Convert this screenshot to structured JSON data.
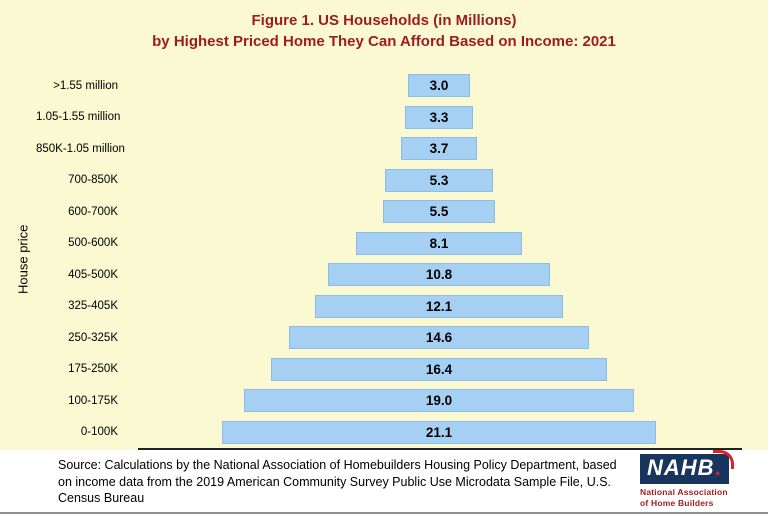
{
  "title": {
    "line1": "Figure 1. US Households (in Millions)",
    "line2": "by Highest Priced Home They Can Afford Based on Income: 2021"
  },
  "chart_data": {
    "type": "bar",
    "subtype": "centered-pyramid-horizontal",
    "title": "Figure 1. US Households (in Millions) by Highest Priced Home They Can Afford Based on Income: 2021",
    "xlabel": "",
    "ylabel": "House price",
    "categories": [
      ">1.55 million",
      "1.05-1.55 million",
      "850K-1.05 million",
      "700-850K",
      "600-700K",
      "500-600K",
      "405-500K",
      "325-405K",
      "250-325K",
      "175-250K",
      "100-175K",
      "0-100K"
    ],
    "values": [
      3.0,
      3.3,
      3.7,
      5.3,
      5.5,
      8.1,
      10.8,
      12.1,
      14.6,
      16.4,
      19.0,
      21.1
    ],
    "labels": [
      "3.0",
      "3.3",
      "3.7",
      "5.3",
      "5.5",
      "8.1",
      "10.8",
      "12.1",
      "14.6",
      "16.4",
      "19.0",
      "21.1"
    ],
    "max_value": 21.1,
    "bar_color": "#A6D0F3",
    "grid": "off",
    "legend": "none"
  },
  "source": {
    "text": "Source: Calculations by the National Association of Homebuilders Housing Policy Department, based on income data from the 2019 American Community Survey Public Use Microdata Sample File, U.S. Census Bureau"
  },
  "logo": {
    "name": "NAHB",
    "dot": ".",
    "subtitle_line1": "National Association",
    "subtitle_line2": "of Home Builders"
  },
  "colors": {
    "background": "#FBF9D2",
    "title": "#9E1B1E",
    "bar": "#A6D0F3",
    "logo_bg": "#17355D",
    "logo_accent": "#E01F26"
  }
}
